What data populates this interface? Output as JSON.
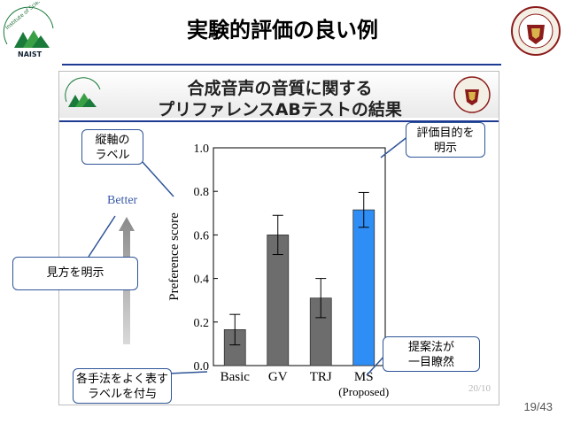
{
  "slide": {
    "title": "実験的評価の良い例",
    "page_number": "19/43"
  },
  "logos": {
    "left_text": "Institute of Science and Technology",
    "left_short": "NAIST",
    "right_text": "CARNEGIE MELLON UNIVERSITY"
  },
  "inner_slide": {
    "title_line1": "合成音声の音質に関する",
    "title_line2": "プリファレンスABテストの結果",
    "better_label": "Better",
    "page": "20/10"
  },
  "callouts": {
    "y_axis": [
      "縦軸の",
      "ラベル"
    ],
    "purpose": [
      "評価目的を",
      "明示"
    ],
    "viewpoint": "見方を明示",
    "method_labels": [
      "各手法をよく表す",
      "ラベルを付与"
    ],
    "proposed": [
      "提案法が",
      "一目瞭然"
    ]
  },
  "colors": {
    "accent": "#2f5597",
    "bar_gray": "#6d6d6d",
    "bar_proposed": "#2e8ef5"
  },
  "chart_data": {
    "type": "bar",
    "ylabel": "Preference score",
    "ylim": [
      0.0,
      1.0
    ],
    "yticks": [
      "0.0",
      "0.2",
      "0.4",
      "0.6",
      "0.8",
      "1.0"
    ],
    "categories": [
      "Basic",
      "GV",
      "TRJ",
      "MS"
    ],
    "sublabel": "(Proposed)",
    "values": [
      0.165,
      0.6,
      0.31,
      0.715
    ],
    "error": [
      0.07,
      0.09,
      0.09,
      0.08
    ],
    "highlight_index": 3
  }
}
